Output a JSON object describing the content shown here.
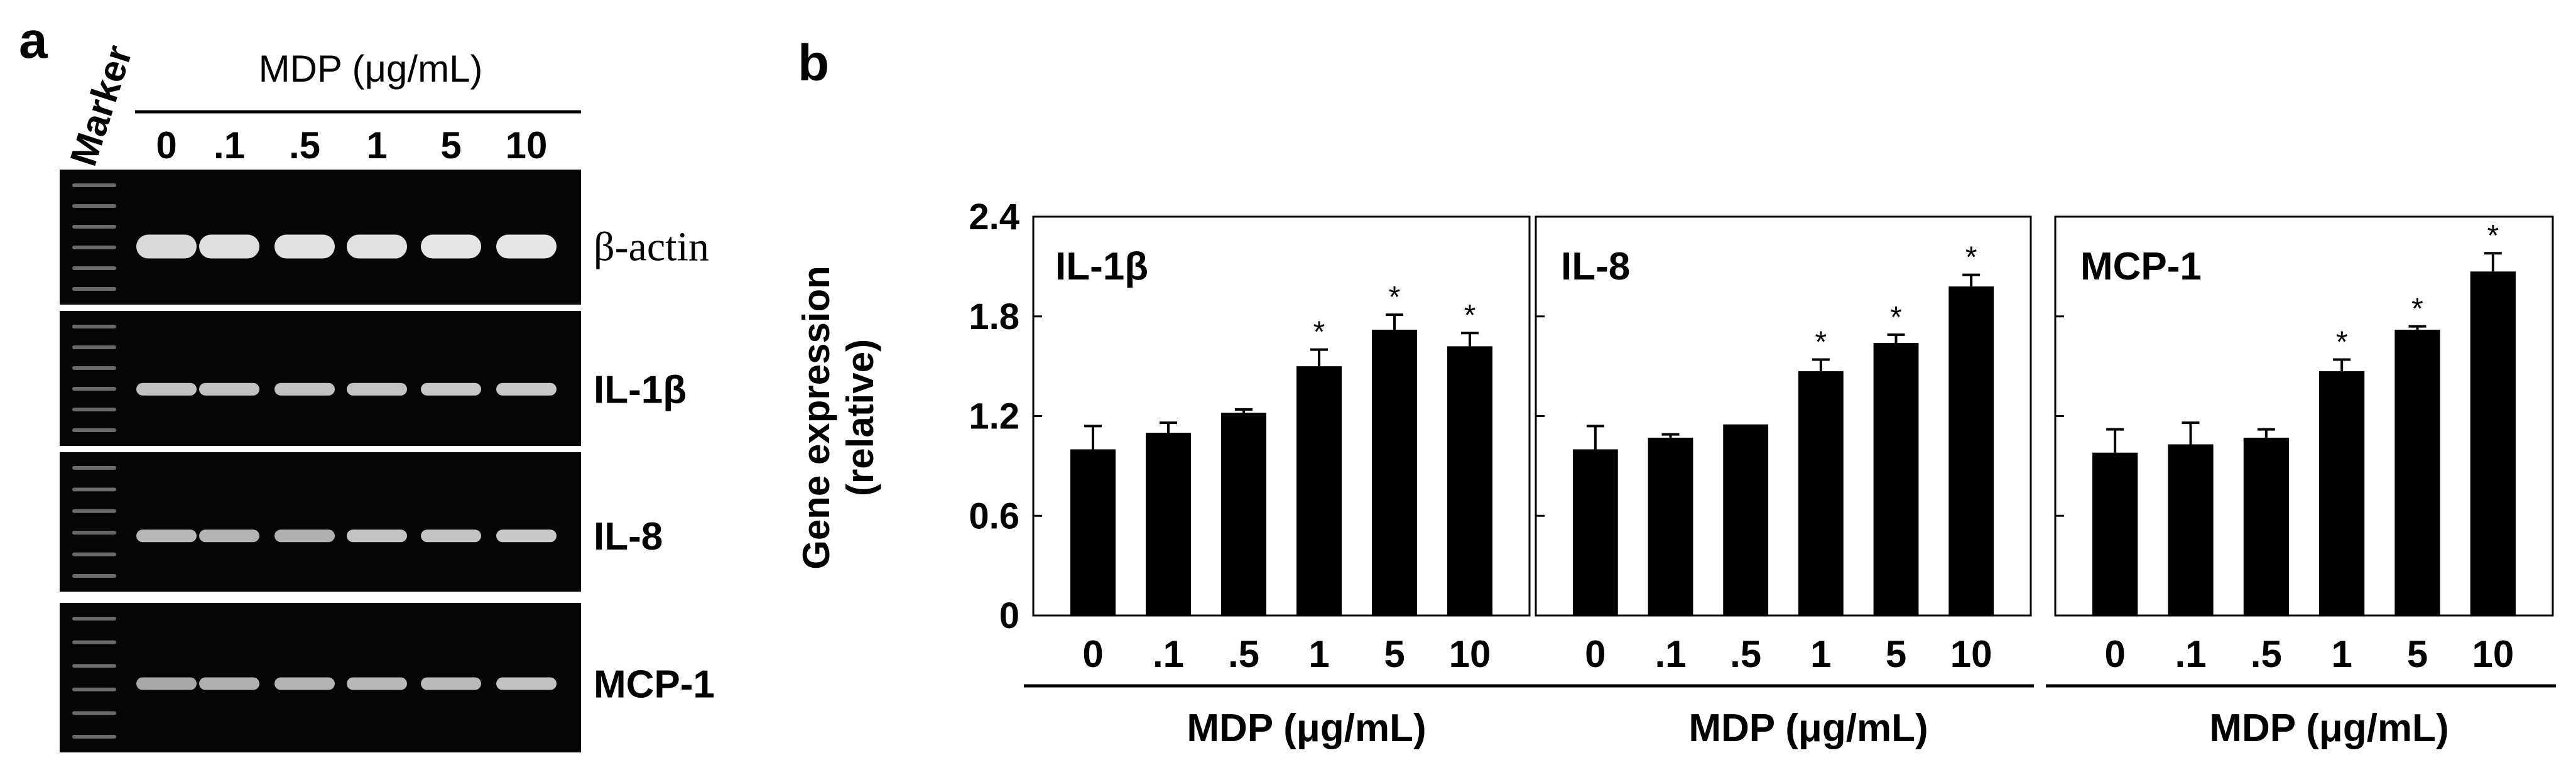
{
  "panel_a": {
    "letter": "a",
    "marker_label": "Marker",
    "treatment_label": "MDP  (μg/mL)",
    "doses": [
      "0",
      ".1",
      ".5",
      "1",
      "5",
      "10"
    ],
    "gels": [
      {
        "label": "β-actin",
        "intensities": [
          0.85,
          0.88,
          0.9,
          0.9,
          0.92,
          0.92
        ]
      },
      {
        "label": "IL-1β",
        "intensities": [
          0.7,
          0.7,
          0.7,
          0.72,
          0.74,
          0.74
        ]
      },
      {
        "label": "IL-8",
        "intensities": [
          0.65,
          0.62,
          0.6,
          0.72,
          0.72,
          0.75
        ]
      },
      {
        "label": "MCP-1",
        "intensities": [
          0.55,
          0.6,
          0.62,
          0.65,
          0.66,
          0.7
        ]
      }
    ]
  },
  "panel_b": {
    "letter": "b",
    "ylabel_line1": "Gene expression",
    "ylabel_line2": "(relative)"
  },
  "chart_data": [
    {
      "type": "bar",
      "title": "IL-1β",
      "categories": [
        "0",
        ".1",
        ".5",
        "1",
        "5",
        "10"
      ],
      "values": [
        1.0,
        1.1,
        1.22,
        1.5,
        1.72,
        1.62
      ],
      "errors": [
        0.14,
        0.06,
        0.02,
        0.1,
        0.09,
        0.08
      ],
      "significant": [
        false,
        false,
        false,
        true,
        true,
        true
      ],
      "sig_marker": "*",
      "xlabel": "MDP (μg/mL)",
      "ylabel": "Gene expression (relative)",
      "ylim": [
        0,
        2.4
      ],
      "yticks": [
        "0",
        "0.6",
        "1.2",
        "1.8",
        "2.4"
      ]
    },
    {
      "type": "bar",
      "title": "IL-8",
      "categories": [
        "0",
        ".1",
        ".5",
        "1",
        "5",
        "10"
      ],
      "values": [
        1.0,
        1.07,
        1.15,
        1.47,
        1.64,
        1.98
      ],
      "errors": [
        0.14,
        0.02,
        0.0,
        0.07,
        0.05,
        0.07
      ],
      "significant": [
        false,
        false,
        false,
        true,
        true,
        true
      ],
      "sig_marker": "*",
      "xlabel": "MDP (μg/mL)",
      "ylim": [
        0,
        2.4
      ]
    },
    {
      "type": "bar",
      "title": "MCP-1",
      "categories": [
        "0",
        ".1",
        ".5",
        "1",
        "5",
        "10"
      ],
      "values": [
        0.98,
        1.03,
        1.07,
        1.47,
        1.72,
        2.07
      ],
      "errors": [
        0.14,
        0.13,
        0.05,
        0.07,
        0.02,
        0.11
      ],
      "significant": [
        false,
        false,
        false,
        true,
        true,
        true
      ],
      "sig_marker": "*",
      "xlabel": "MDP (μg/mL)",
      "ylim": [
        0,
        2.4
      ]
    }
  ]
}
